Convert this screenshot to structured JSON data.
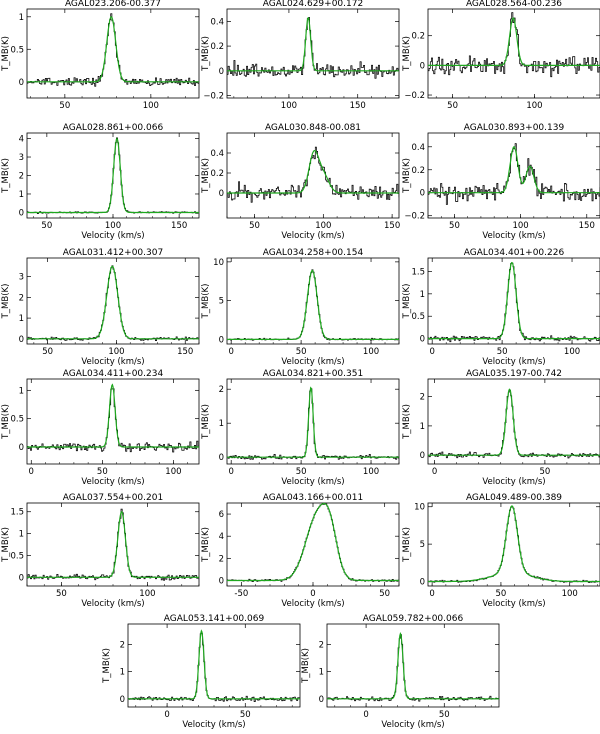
{
  "chart_data": [
    {
      "type": "line",
      "title": "AGAL023.206-00.377",
      "xlabel": "",
      "ylabel": "T_MB(K)",
      "xlim": [
        28,
        128
      ],
      "ylim": [
        -0.25,
        1.12
      ],
      "xticks": [
        50,
        100
      ],
      "yticks": [
        0,
        0.5,
        1
      ],
      "ytick_labels": [
        "0",
        "0.5",
        "1"
      ],
      "peaks": [
        {
          "center": 77,
          "amp": 1.0,
          "width": 2.6
        }
      ],
      "noise": 0.055,
      "series": [
        {
          "color": "#000000",
          "values": "observed spectrum"
        },
        {
          "color": "#1fa81f",
          "values": "gaussian fit"
        }
      ]
    },
    {
      "type": "line",
      "title": "AGAL024.629+00.172",
      "xlabel": "",
      "ylabel": "T_MB(K)",
      "xlim": [
        55,
        180
      ],
      "ylim": [
        -0.22,
        0.5
      ],
      "xticks": [
        100,
        150
      ],
      "yticks": [
        -0.2,
        0,
        0.2,
        0.4
      ],
      "ytick_labels": [
        "−0.2",
        "0",
        "0.2",
        "0.4"
      ],
      "peaks": [
        {
          "center": 114,
          "amp": 0.43,
          "width": 1.8
        }
      ],
      "noise": 0.055
    },
    {
      "type": "line",
      "title": "AGAL028.564-00.236",
      "xlabel": "",
      "ylabel": "T_MB(K)",
      "xlim": [
        35,
        140
      ],
      "ylim": [
        -0.22,
        0.38
      ],
      "xticks": [
        50,
        100
      ],
      "yticks": [
        -0.2,
        0,
        0.2
      ],
      "ytick_labels": [
        "−0.2",
        "0",
        "0.2"
      ],
      "peaks": [
        {
          "center": 87,
          "amp": 0.32,
          "width": 2.2
        }
      ],
      "noise": 0.055
    },
    {
      "type": "line",
      "title": "AGAL028.861+00.066",
      "xlabel": "Velocity (km/s)",
      "ylabel": "T_MB(K)",
      "xlim": [
        35,
        165
      ],
      "ylim": [
        -0.3,
        4.3
      ],
      "xticks": [
        50,
        100,
        150
      ],
      "yticks": [
        0,
        1,
        2,
        3,
        4
      ],
      "ytick_labels": [
        "0",
        "1",
        "2",
        "3",
        "4"
      ],
      "peaks": [
        {
          "center": 103,
          "amp": 4.0,
          "width": 2.5
        }
      ],
      "noise": 0.04
    },
    {
      "type": "line",
      "title": "AGAL030.848-00.081",
      "xlabel": "Velocity (km/s)",
      "ylabel": "T_MB(K)",
      "xlim": [
        30,
        155
      ],
      "ylim": [
        -0.25,
        0.6
      ],
      "xticks": [
        50,
        100,
        150
      ],
      "yticks": [
        0,
        0.2,
        0.4
      ],
      "ytick_labels": [
        "0",
        "0.2",
        "0.4"
      ],
      "peaks": [
        {
          "center": 93,
          "amp": 0.38,
          "width": 3.5
        },
        {
          "center": 100,
          "amp": 0.18,
          "width": 4
        }
      ],
      "noise": 0.07
    },
    {
      "type": "line",
      "title": "AGAL030.893+00.139",
      "xlabel": "Velocity (km/s)",
      "ylabel": "T_MB(K)",
      "xlim": [
        30,
        160
      ],
      "ylim": [
        -0.22,
        0.52
      ],
      "xticks": [
        50,
        100,
        150
      ],
      "yticks": [
        -0.2,
        0,
        0.2,
        0.4
      ],
      "ytick_labels": [
        "−0.2",
        "0",
        "0.2",
        "0.4"
      ],
      "peaks": [
        {
          "center": 95,
          "amp": 0.4,
          "width": 3
        },
        {
          "center": 107,
          "amp": 0.23,
          "width": 3
        }
      ],
      "noise": 0.07
    },
    {
      "type": "line",
      "title": "AGAL031.412+00.307",
      "xlabel": "Velocity (km/s)",
      "ylabel": "T_MB(K)",
      "xlim": [
        35,
        160
      ],
      "ylim": [
        -0.25,
        3.9
      ],
      "xticks": [
        50,
        100,
        150
      ],
      "yticks": [
        0,
        1,
        2,
        3
      ],
      "ytick_labels": [
        "0",
        "1",
        "2",
        "3"
      ],
      "peaks": [
        {
          "center": 97,
          "amp": 3.5,
          "width": 4
        }
      ],
      "noise": 0.08
    },
    {
      "type": "line",
      "title": "AGAL034.258+00.154",
      "xlabel": "Velocity (km/s)",
      "ylabel": "T_MB(K)",
      "xlim": [
        -3,
        120
      ],
      "ylim": [
        -0.6,
        10.5
      ],
      "xticks": [
        0,
        50,
        100
      ],
      "yticks": [
        0,
        5,
        10
      ],
      "ytick_labels": [
        "0",
        "5",
        "10"
      ],
      "peaks": [
        {
          "center": 58,
          "amp": 8.9,
          "width": 3.5
        }
      ],
      "noise": 0.12
    },
    {
      "type": "line",
      "title": "AGAL034.401+00.226",
      "xlabel": "Velocity (km/s)",
      "ylabel": "T_MB(K)",
      "xlim": [
        -3,
        120
      ],
      "ylim": [
        -0.12,
        1.8
      ],
      "xticks": [
        0,
        50,
        100
      ],
      "yticks": [
        0,
        0.5,
        1,
        1.5
      ],
      "ytick_labels": [
        "0",
        "0.5",
        "1",
        "1.5"
      ],
      "peaks": [
        {
          "center": 57,
          "amp": 1.7,
          "width": 3
        }
      ],
      "noise": 0.05
    },
    {
      "type": "line",
      "title": "AGAL034.411+00.234",
      "xlabel": "Velocity (km/s)",
      "ylabel": "T_MB(K)",
      "xlim": [
        -3,
        118
      ],
      "ylim": [
        -0.3,
        1.2
      ],
      "xticks": [
        0,
        50,
        100
      ],
      "yticks": [
        0,
        0.5,
        1
      ],
      "ytick_labels": [
        "0",
        "0.5",
        "1"
      ],
      "peaks": [
        {
          "center": 57,
          "amp": 1.1,
          "width": 2
        }
      ],
      "noise": 0.07
    },
    {
      "type": "line",
      "title": "AGAL034.821+00.351",
      "xlabel": "Velocity (km/s)",
      "ylabel": "T_MB(K)",
      "xlim": [
        -3,
        120
      ],
      "ylim": [
        -0.2,
        2.3
      ],
      "xticks": [
        0,
        50,
        100
      ],
      "yticks": [
        0,
        1,
        2
      ],
      "ytick_labels": [
        "0",
        "1",
        "2"
      ],
      "peaks": [
        {
          "center": 57,
          "amp": 2.05,
          "width": 1.6
        }
      ],
      "noise": 0.06
    },
    {
      "type": "line",
      "title": "AGAL035.197-00.742",
      "xlabel": "Velocity (km/s)",
      "ylabel": "T_MB(K)",
      "xlim": [
        -3,
        75
      ],
      "ylim": [
        -0.3,
        2.6
      ],
      "xticks": [
        0,
        50
      ],
      "yticks": [
        0,
        1,
        2
      ],
      "ytick_labels": [
        "0",
        "1",
        "2"
      ],
      "peaks": [
        {
          "center": 34,
          "amp": 2.25,
          "width": 1.6
        }
      ],
      "noise": 0.08
    },
    {
      "type": "line",
      "title": "AGAL037.554+00.201",
      "xlabel": "Velocity (km/s)",
      "ylabel": "T_MB(K)",
      "xlim": [
        30,
        130
      ],
      "ylim": [
        -0.2,
        1.7
      ],
      "xticks": [
        50,
        100
      ],
      "yticks": [
        0,
        0.5,
        1,
        1.5
      ],
      "ytick_labels": [
        "0",
        "0.5",
        "1",
        "1.5"
      ],
      "peaks": [
        {
          "center": 85,
          "amp": 1.5,
          "width": 2.2
        }
      ],
      "noise": 0.06
    },
    {
      "type": "line",
      "title": "AGAL043.166+00.011",
      "xlabel": "Velocity (km/s)",
      "ylabel": "T_MB(K)",
      "xlim": [
        -60,
        60
      ],
      "ylim": [
        -0.5,
        7.0
      ],
      "xticks": [
        -50,
        0,
        50
      ],
      "yticks": [
        0,
        2,
        4,
        6
      ],
      "ytick_labels": [
        "0",
        "2",
        "4",
        "6"
      ],
      "peaks": [
        {
          "center": 3,
          "amp": 5.8,
          "width": 8
        },
        {
          "center": 12,
          "amp": 3,
          "width": 5
        }
      ],
      "noise": 0.1
    },
    {
      "type": "line",
      "title": "AGAL049.489-00.389",
      "xlabel": "Velocity (km/s)",
      "ylabel": "T_MB(K)",
      "xlim": [
        -3,
        122
      ],
      "ylim": [
        -0.6,
        10.5
      ],
      "xticks": [
        0,
        50,
        100
      ],
      "yticks": [
        0,
        5,
        10
      ],
      "ytick_labels": [
        "0",
        "5",
        "10"
      ],
      "peaks": [
        {
          "center": 58,
          "amp": 8.9,
          "width": 4
        },
        {
          "center": 58,
          "amp": 1.2,
          "width": 14
        }
      ],
      "noise": 0.12
    },
    {
      "type": "line",
      "title": "AGAL053.141+00.069",
      "xlabel": "Velocity (km/s)",
      "ylabel": "T_MB(K)",
      "xlim": [
        -25,
        85
      ],
      "ylim": [
        -0.3,
        2.75
      ],
      "xticks": [
        0,
        50
      ],
      "yticks": [
        0,
        1,
        2
      ],
      "ytick_labels": [
        "0",
        "1",
        "2"
      ],
      "peaks": [
        {
          "center": 22,
          "amp": 2.5,
          "width": 1.6
        }
      ],
      "noise": 0.07
    },
    {
      "type": "line",
      "title": "AGAL059.782+00.066",
      "xlabel": "Velocity (km/s)",
      "ylabel": "T_MB(K)",
      "xlim": [
        -25,
        85
      ],
      "ylim": [
        -0.3,
        2.75
      ],
      "xticks": [
        0,
        50
      ],
      "yticks": [
        0,
        1,
        2
      ],
      "ytick_labels": [
        "0",
        "1",
        "2"
      ],
      "peaks": [
        {
          "center": 22,
          "amp": 2.4,
          "width": 1.6
        }
      ],
      "noise": 0.07
    }
  ],
  "colors": {
    "observed": "#000000",
    "fit": "#1fa81f",
    "axes": "#000000"
  }
}
